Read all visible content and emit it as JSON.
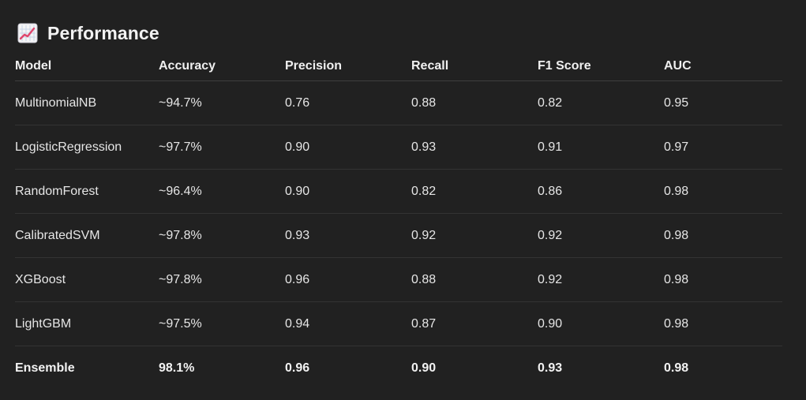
{
  "section": {
    "title": "Performance",
    "icon": "chart-increasing-icon"
  },
  "table": {
    "headers": [
      "Model",
      "Accuracy",
      "Precision",
      "Recall",
      "F1 Score",
      "AUC"
    ],
    "rows": [
      [
        "MultinomialNB",
        "~94.7%",
        "0.76",
        "0.88",
        "0.82",
        "0.95"
      ],
      [
        "LogisticRegression",
        "~97.7%",
        "0.90",
        "0.93",
        "0.91",
        "0.97"
      ],
      [
        "RandomForest",
        "~96.4%",
        "0.90",
        "0.82",
        "0.86",
        "0.98"
      ],
      [
        "CalibratedSVM",
        "~97.8%",
        "0.93",
        "0.92",
        "0.92",
        "0.98"
      ],
      [
        "XGBoost",
        "~97.8%",
        "0.96",
        "0.88",
        "0.92",
        "0.98"
      ],
      [
        "LightGBM",
        "~97.5%",
        "0.94",
        "0.87",
        "0.90",
        "0.98"
      ],
      [
        "Ensemble",
        "98.1%",
        "0.96",
        "0.90",
        "0.93",
        "0.98"
      ]
    ]
  }
}
